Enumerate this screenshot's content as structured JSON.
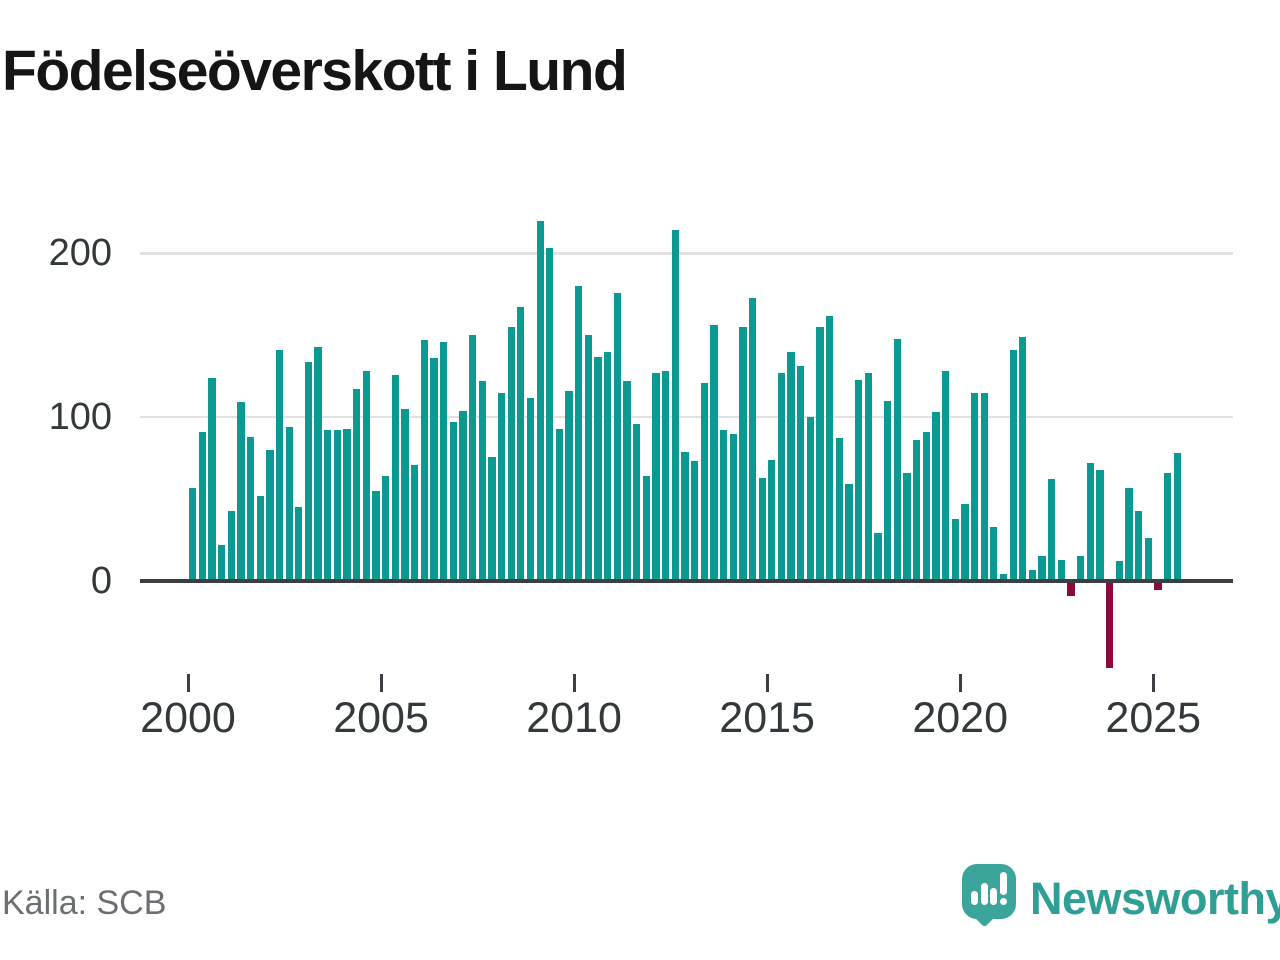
{
  "title": "Födelseöverskott i Lund",
  "source": {
    "label": "Källa: SCB"
  },
  "branding": {
    "name": "Newsworthy",
    "icon": "speech-bubble-bar-chart-icon"
  },
  "colors": {
    "bar_positive": "#0a9a91",
    "bar_negative": "#8e0a3c",
    "axis": "#3b3e42",
    "gridline": "#e2e2e2",
    "brand_teal": "#2f9f96",
    "title_text": "#151515",
    "tick_text": "#33383d",
    "source_text": "#6b6e74"
  },
  "chart_data": {
    "type": "bar",
    "title": "Födelseöverskott i Lund",
    "frequency": "quarterly",
    "x_start_period": "2000 Q1",
    "x_end_period": "2025 Q3",
    "x_tick_labels": [
      "2000",
      "2005",
      "2010",
      "2015",
      "2020",
      "2025"
    ],
    "y_ticks": [
      0,
      100,
      200
    ],
    "ylim": [
      -60,
      235
    ],
    "grid": "horizontal",
    "legend": "none",
    "values": [
      57,
      91,
      124,
      22,
      43,
      109,
      88,
      52,
      80,
      141,
      94,
      45,
      134,
      143,
      92,
      92,
      93,
      117,
      128,
      55,
      64,
      126,
      105,
      71,
      147,
      136,
      146,
      97,
      104,
      150,
      122,
      76,
      115,
      155,
      167,
      112,
      220,
      203,
      93,
      116,
      180,
      150,
      137,
      140,
      176,
      122,
      96,
      64,
      127,
      128,
      214,
      79,
      73,
      121,
      156,
      92,
      90,
      155,
      173,
      63,
      74,
      127,
      140,
      131,
      100,
      155,
      162,
      87,
      59,
      123,
      127,
      29,
      110,
      148,
      66,
      86,
      91,
      103,
      128,
      38,
      47,
      115,
      115,
      33,
      4,
      141,
      149,
      7,
      15,
      62,
      13,
      -8,
      15,
      72,
      68,
      -52,
      12,
      57,
      43,
      26,
      -4,
      66,
      78
    ]
  }
}
